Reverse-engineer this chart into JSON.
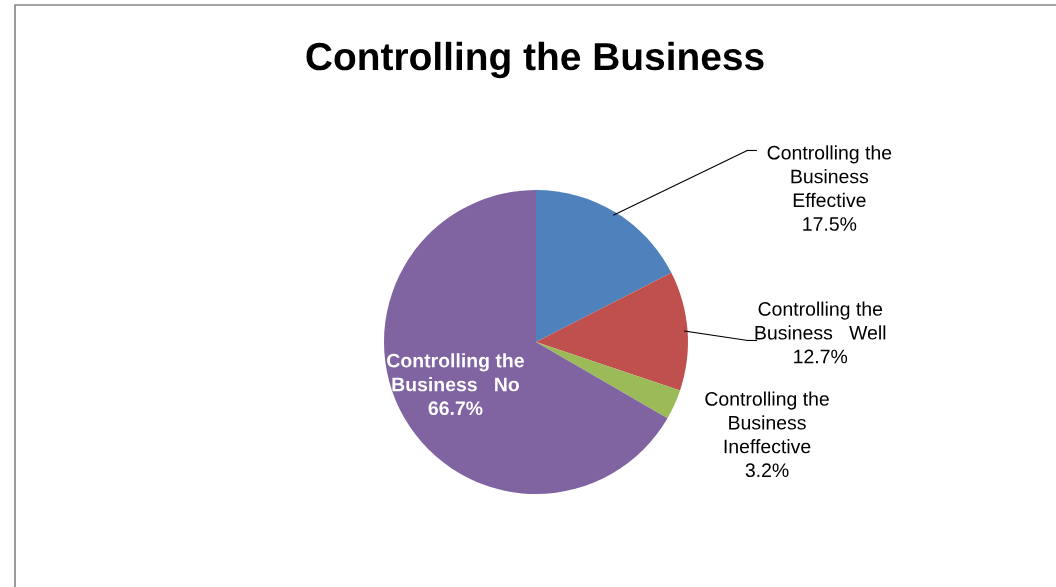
{
  "chart_data": {
    "type": "pie",
    "title": "Controlling the Business",
    "categories": [
      "Controlling the\nBusiness\nEffective",
      "Controlling the\nBusiness   Well",
      "Controlling the\nBusiness\nIneffective",
      "Controlling the\nBusiness   No"
    ],
    "values": [
      17.5,
      12.7,
      3.2,
      66.7
    ],
    "value_labels": [
      "17.5%",
      "12.7%",
      "3.2%",
      "66.7%"
    ],
    "colors": [
      "#4f81bd",
      "#c0504d",
      "#9bbb59",
      "#8064a2"
    ],
    "legend": false
  }
}
